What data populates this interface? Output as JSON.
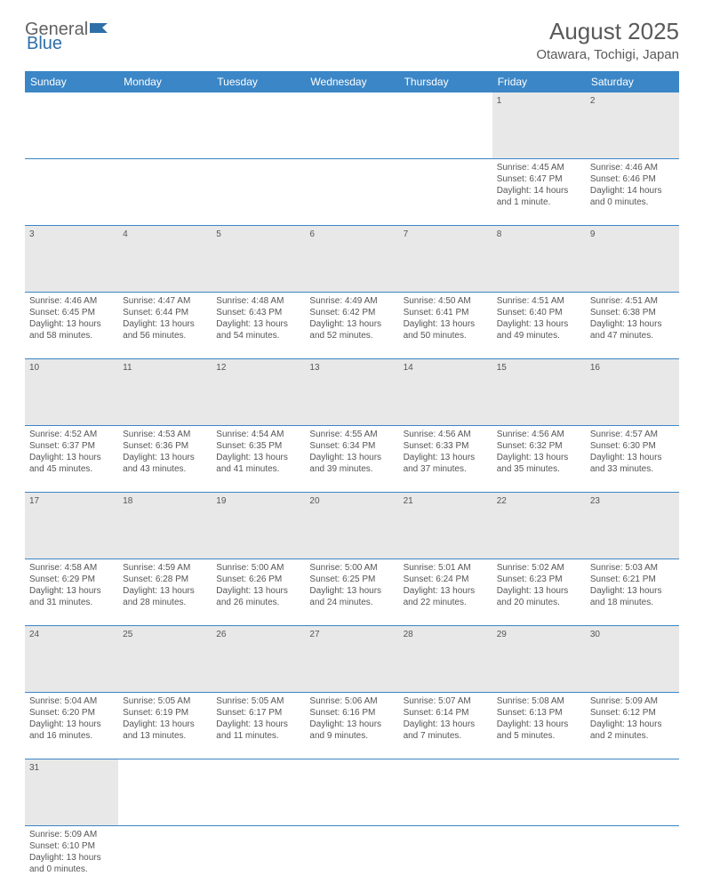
{
  "logo": {
    "part1": "General",
    "part2": "Blue"
  },
  "title": "August 2025",
  "location": "Otawara, Tochigi, Japan",
  "colors": {
    "header_bg": "#3b86c6",
    "header_text": "#ffffff",
    "daynum_bg": "#e8e8e8",
    "border": "#3b86c6",
    "text": "#555555",
    "logo_blue": "#2f6fa8"
  },
  "weekdays": [
    "Sunday",
    "Monday",
    "Tuesday",
    "Wednesday",
    "Thursday",
    "Friday",
    "Saturday"
  ],
  "weeks": [
    {
      "nums": [
        "",
        "",
        "",
        "",
        "",
        "1",
        "2"
      ],
      "cells": [
        null,
        null,
        null,
        null,
        null,
        {
          "sunrise": "4:45 AM",
          "sunset": "6:47 PM",
          "dl_h": 14,
          "dl_m": 1
        },
        {
          "sunrise": "4:46 AM",
          "sunset": "6:46 PM",
          "dl_h": 14,
          "dl_m": 0
        }
      ]
    },
    {
      "nums": [
        "3",
        "4",
        "5",
        "6",
        "7",
        "8",
        "9"
      ],
      "cells": [
        {
          "sunrise": "4:46 AM",
          "sunset": "6:45 PM",
          "dl_h": 13,
          "dl_m": 58
        },
        {
          "sunrise": "4:47 AM",
          "sunset": "6:44 PM",
          "dl_h": 13,
          "dl_m": 56
        },
        {
          "sunrise": "4:48 AM",
          "sunset": "6:43 PM",
          "dl_h": 13,
          "dl_m": 54
        },
        {
          "sunrise": "4:49 AM",
          "sunset": "6:42 PM",
          "dl_h": 13,
          "dl_m": 52
        },
        {
          "sunrise": "4:50 AM",
          "sunset": "6:41 PM",
          "dl_h": 13,
          "dl_m": 50
        },
        {
          "sunrise": "4:51 AM",
          "sunset": "6:40 PM",
          "dl_h": 13,
          "dl_m": 49
        },
        {
          "sunrise": "4:51 AM",
          "sunset": "6:38 PM",
          "dl_h": 13,
          "dl_m": 47
        }
      ]
    },
    {
      "nums": [
        "10",
        "11",
        "12",
        "13",
        "14",
        "15",
        "16"
      ],
      "cells": [
        {
          "sunrise": "4:52 AM",
          "sunset": "6:37 PM",
          "dl_h": 13,
          "dl_m": 45
        },
        {
          "sunrise": "4:53 AM",
          "sunset": "6:36 PM",
          "dl_h": 13,
          "dl_m": 43
        },
        {
          "sunrise": "4:54 AM",
          "sunset": "6:35 PM",
          "dl_h": 13,
          "dl_m": 41
        },
        {
          "sunrise": "4:55 AM",
          "sunset": "6:34 PM",
          "dl_h": 13,
          "dl_m": 39
        },
        {
          "sunrise": "4:56 AM",
          "sunset": "6:33 PM",
          "dl_h": 13,
          "dl_m": 37
        },
        {
          "sunrise": "4:56 AM",
          "sunset": "6:32 PM",
          "dl_h": 13,
          "dl_m": 35
        },
        {
          "sunrise": "4:57 AM",
          "sunset": "6:30 PM",
          "dl_h": 13,
          "dl_m": 33
        }
      ]
    },
    {
      "nums": [
        "17",
        "18",
        "19",
        "20",
        "21",
        "22",
        "23"
      ],
      "cells": [
        {
          "sunrise": "4:58 AM",
          "sunset": "6:29 PM",
          "dl_h": 13,
          "dl_m": 31
        },
        {
          "sunrise": "4:59 AM",
          "sunset": "6:28 PM",
          "dl_h": 13,
          "dl_m": 28
        },
        {
          "sunrise": "5:00 AM",
          "sunset": "6:26 PM",
          "dl_h": 13,
          "dl_m": 26
        },
        {
          "sunrise": "5:00 AM",
          "sunset": "6:25 PM",
          "dl_h": 13,
          "dl_m": 24
        },
        {
          "sunrise": "5:01 AM",
          "sunset": "6:24 PM",
          "dl_h": 13,
          "dl_m": 22
        },
        {
          "sunrise": "5:02 AM",
          "sunset": "6:23 PM",
          "dl_h": 13,
          "dl_m": 20
        },
        {
          "sunrise": "5:03 AM",
          "sunset": "6:21 PM",
          "dl_h": 13,
          "dl_m": 18
        }
      ]
    },
    {
      "nums": [
        "24",
        "25",
        "26",
        "27",
        "28",
        "29",
        "30"
      ],
      "cells": [
        {
          "sunrise": "5:04 AM",
          "sunset": "6:20 PM",
          "dl_h": 13,
          "dl_m": 16
        },
        {
          "sunrise": "5:05 AM",
          "sunset": "6:19 PM",
          "dl_h": 13,
          "dl_m": 13
        },
        {
          "sunrise": "5:05 AM",
          "sunset": "6:17 PM",
          "dl_h": 13,
          "dl_m": 11
        },
        {
          "sunrise": "5:06 AM",
          "sunset": "6:16 PM",
          "dl_h": 13,
          "dl_m": 9
        },
        {
          "sunrise": "5:07 AM",
          "sunset": "6:14 PM",
          "dl_h": 13,
          "dl_m": 7
        },
        {
          "sunrise": "5:08 AM",
          "sunset": "6:13 PM",
          "dl_h": 13,
          "dl_m": 5
        },
        {
          "sunrise": "5:09 AM",
          "sunset": "6:12 PM",
          "dl_h": 13,
          "dl_m": 2
        }
      ]
    },
    {
      "nums": [
        "31",
        "",
        "",
        "",
        "",
        "",
        ""
      ],
      "cells": [
        {
          "sunrise": "5:09 AM",
          "sunset": "6:10 PM",
          "dl_h": 13,
          "dl_m": 0
        },
        null,
        null,
        null,
        null,
        null,
        null
      ]
    }
  ]
}
